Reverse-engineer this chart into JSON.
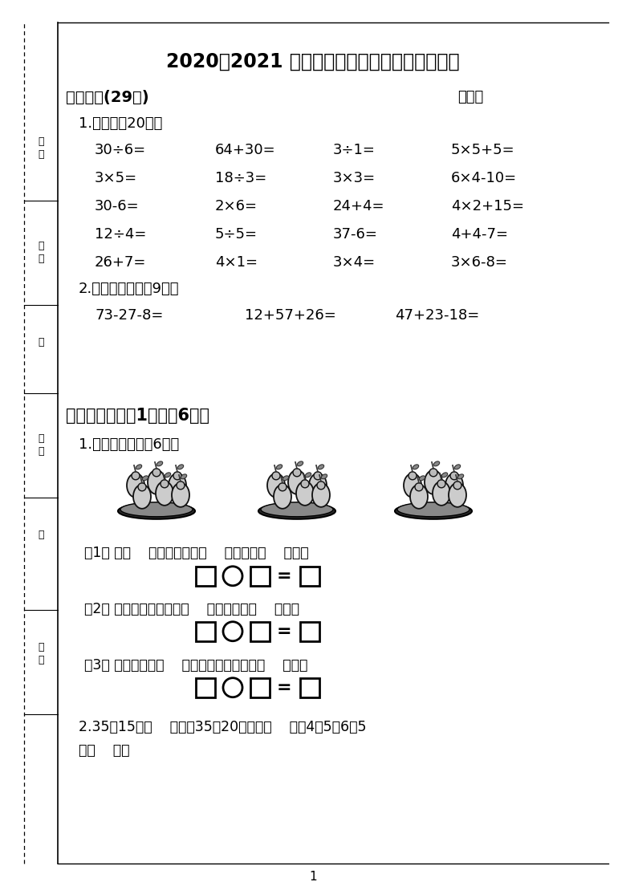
{
  "title": "2020～2021 学年第一学期二年级数学期中练习",
  "section1": "一、计算(29分)",
  "chengji": "成绩：",
  "sub1": "1.口算。（20分）",
  "row1": [
    "30÷6=",
    "64+30=",
    "3÷1=",
    "5×5+5="
  ],
  "row2": [
    "3×5=",
    "18÷3=",
    "3×3=",
    "6×4-10="
  ],
  "row3": [
    "30-6=",
    "2×6=",
    "24+4=",
    "4×2+15="
  ],
  "row4": [
    "12÷4=",
    "5÷5=",
    "37-6=",
    "4+4-7="
  ],
  "row5": [
    "26+7=",
    "4×1=",
    "3×4=",
    "3×6-8="
  ],
  "sub2": "2.用竖式计算。（9分）",
  "row6": [
    "73-27-8=",
    "12+57+26=",
    "47+23-18="
  ],
  "section2": "二、填空（每空1分，兲6分）",
  "fill1": "1.看图填一填。（6分）",
  "q1": "（1） 每（    ）只梨一盘，（    ）盘梨共（    ）只。",
  "q2": "（2） 把这些梨平均分成（    ）盘，每盘（    ）只。",
  "q3": "（3） 把这些梨每（    ）只一盘，可以分成（    ）盘。",
  "q_last": "2.35比15多（    ），比35多20的数是（    ）；4个5比6个5",
  "q_last2": "少（    ）。",
  "sidebar_xueHao": "学号",
  "sidebar_jie": "绝",
  "sidebar_banJi": "班级",
  "sidebar_ju": "居",
  "sidebar_xingMing": "姓名",
  "sidebar_zhang": "张",
  "sidebar_xueXiao": "学校",
  "page_num": "1",
  "bg_color": "#ffffff",
  "text_color": "#000000"
}
